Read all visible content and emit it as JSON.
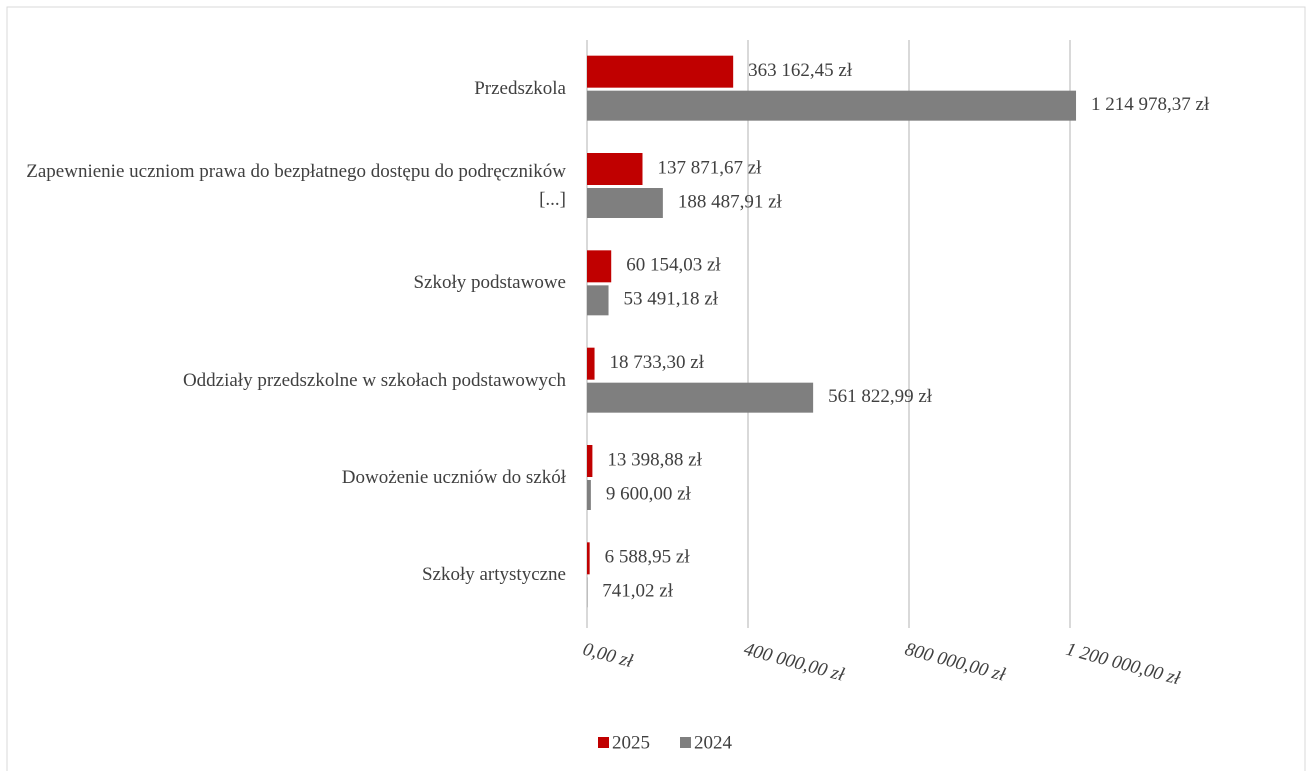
{
  "chart_data": {
    "type": "bar",
    "orientation": "horizontal",
    "categories": [
      "Przedszkola",
      "Zapewnienie uczniom prawa do bezpłatnego dostępu do podręczników [...]",
      "Szkoły podstawowe",
      "Oddziały przedszkolne w szkołach podstawowych",
      "Dowożenie uczniów do szkół",
      "Szkoły artystyczne"
    ],
    "series": [
      {
        "name": "2025",
        "color": "#c00000",
        "values": [
          363162.45,
          137871.67,
          60154.03,
          18733.3,
          13398.88,
          6588.95
        ],
        "value_labels": [
          "363 162,45 zł",
          "137 871,67 zł",
          "60 154,03 zł",
          "18 733,30 zł",
          "13 398,88 zł",
          "6 588,95 zł"
        ]
      },
      {
        "name": "2024",
        "color": "#7f7f7f",
        "values": [
          1214978.37,
          188487.91,
          53491.18,
          561822.99,
          9600.0,
          741.02
        ],
        "value_labels": [
          "1 214 978,37 zł",
          "188 487,91 zł",
          "53 491,18 zł",
          "561 822,99 zł",
          "9 600,00 zł",
          "741,02 zł"
        ]
      }
    ],
    "xlim": [
      0,
      1200000
    ],
    "xticks": [
      {
        "value": 0,
        "label": "0,00 zł"
      },
      {
        "value": 400000,
        "label": "400 000,00 zł"
      },
      {
        "value": 800000,
        "label": "800 000,00 zł"
      },
      {
        "value": 1200000,
        "label": "1 200 000,00 zł"
      }
    ],
    "grid": true,
    "legend": "bottom"
  }
}
